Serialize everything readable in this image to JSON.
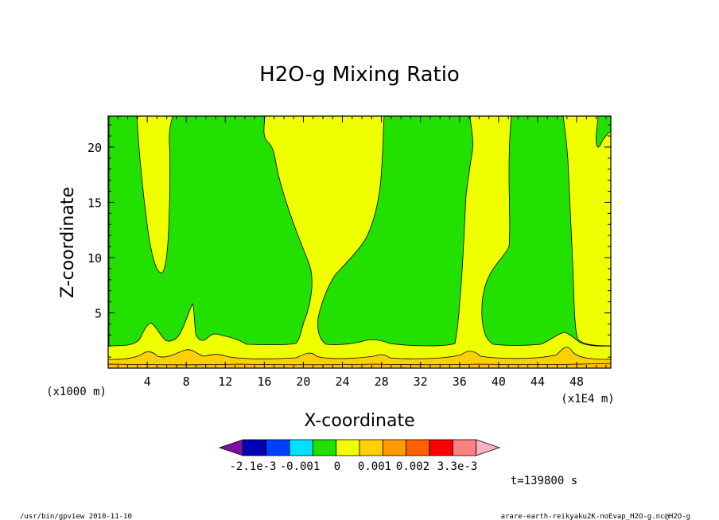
{
  "chart_data": {
    "type": "heatmap",
    "title": "H2O-g Mixing Ratio",
    "xlabel": "X-coordinate",
    "ylabel": "Z-coordinate",
    "x_unit": "(x1000 m)",
    "x_scale_note": "(x1E4 m)",
    "xlim": [
      0,
      51.5
    ],
    "ylim": [
      0,
      22.8
    ],
    "x_ticks": [
      4,
      8,
      12,
      16,
      20,
      24,
      28,
      32,
      36,
      40,
      44,
      48
    ],
    "y_ticks": [
      5,
      10,
      15,
      20
    ],
    "levels_colors": [
      "#7f0fa0",
      "#0000b4",
      "#0040ff",
      "#00e0ff",
      "#22e000",
      "#f0ff00",
      "#ffd000",
      "#ff9a00",
      "#ff6000",
      "#ff0000",
      "#ff8080",
      "#ffb0c0"
    ],
    "colorbar_labels": [
      "-2.1e-3",
      "-0.001",
      "0",
      "0.001",
      "0.002",
      "3.3e-3"
    ],
    "green_color": "#22e000",
    "yellow_color": "#f0ff00",
    "orange_color": "#ffd000",
    "deep_orange_color": "#ffb000",
    "time_label": "t=139800 s"
  },
  "footer": {
    "left": "/usr/bin/gpview  2010-11-10",
    "right": "arare-earth-reikyaku2K-noEvap_H2O-g.nc@H2O-g"
  }
}
